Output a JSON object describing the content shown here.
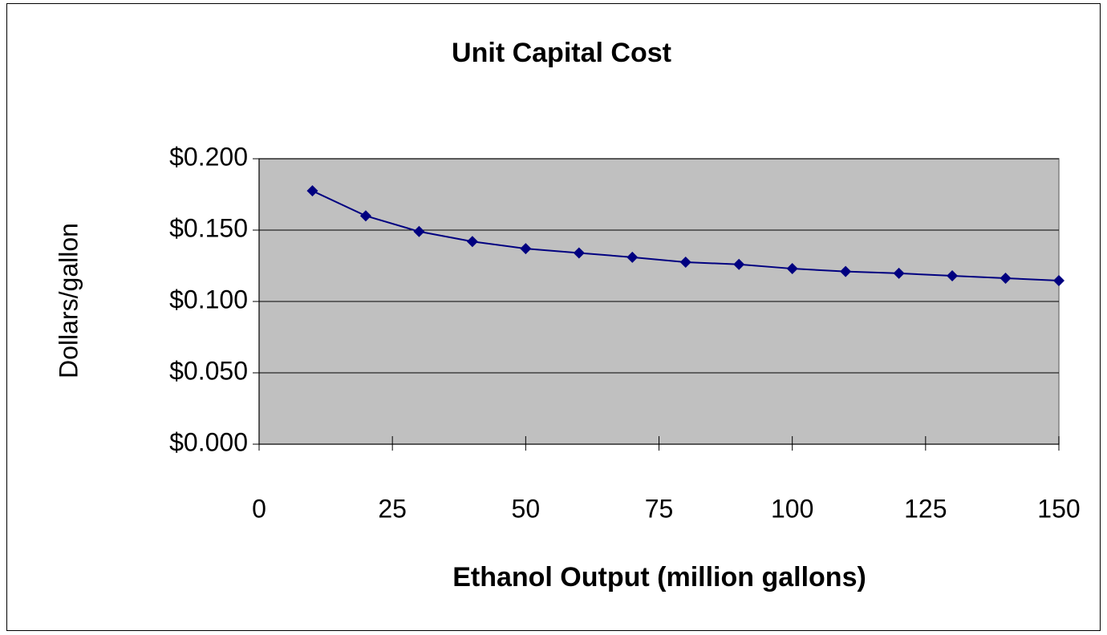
{
  "chart_data": {
    "type": "line",
    "title": "Unit Capital Cost",
    "x_label": "Ethanol Output (million gallons)",
    "y_label": "Dollars/gallon",
    "x": [
      10,
      20,
      30,
      40,
      50,
      60,
      70,
      80,
      90,
      100,
      110,
      120,
      130,
      140,
      150
    ],
    "series": [
      {
        "name": "Unit Capital Cost",
        "color": "#000080",
        "values": [
          0.1775,
          0.16,
          0.149,
          0.142,
          0.137,
          0.134,
          0.131,
          0.1275,
          0.126,
          0.123,
          0.121,
          0.1197,
          0.118,
          0.1163,
          0.1146
        ]
      }
    ],
    "xlim": [
      0,
      150
    ],
    "xticks": [
      0,
      25,
      50,
      75,
      100,
      125,
      150
    ],
    "ylim": [
      0,
      0.2
    ],
    "yticks": [
      {
        "value": 0,
        "label": "$0.000"
      },
      {
        "value": 0.05,
        "label": "$0.050"
      },
      {
        "value": 0.1,
        "label": "$0.100"
      },
      {
        "value": 0.15,
        "label": "$0.150"
      },
      {
        "value": 0.2,
        "label": "$0.200"
      }
    ],
    "grid": true
  }
}
